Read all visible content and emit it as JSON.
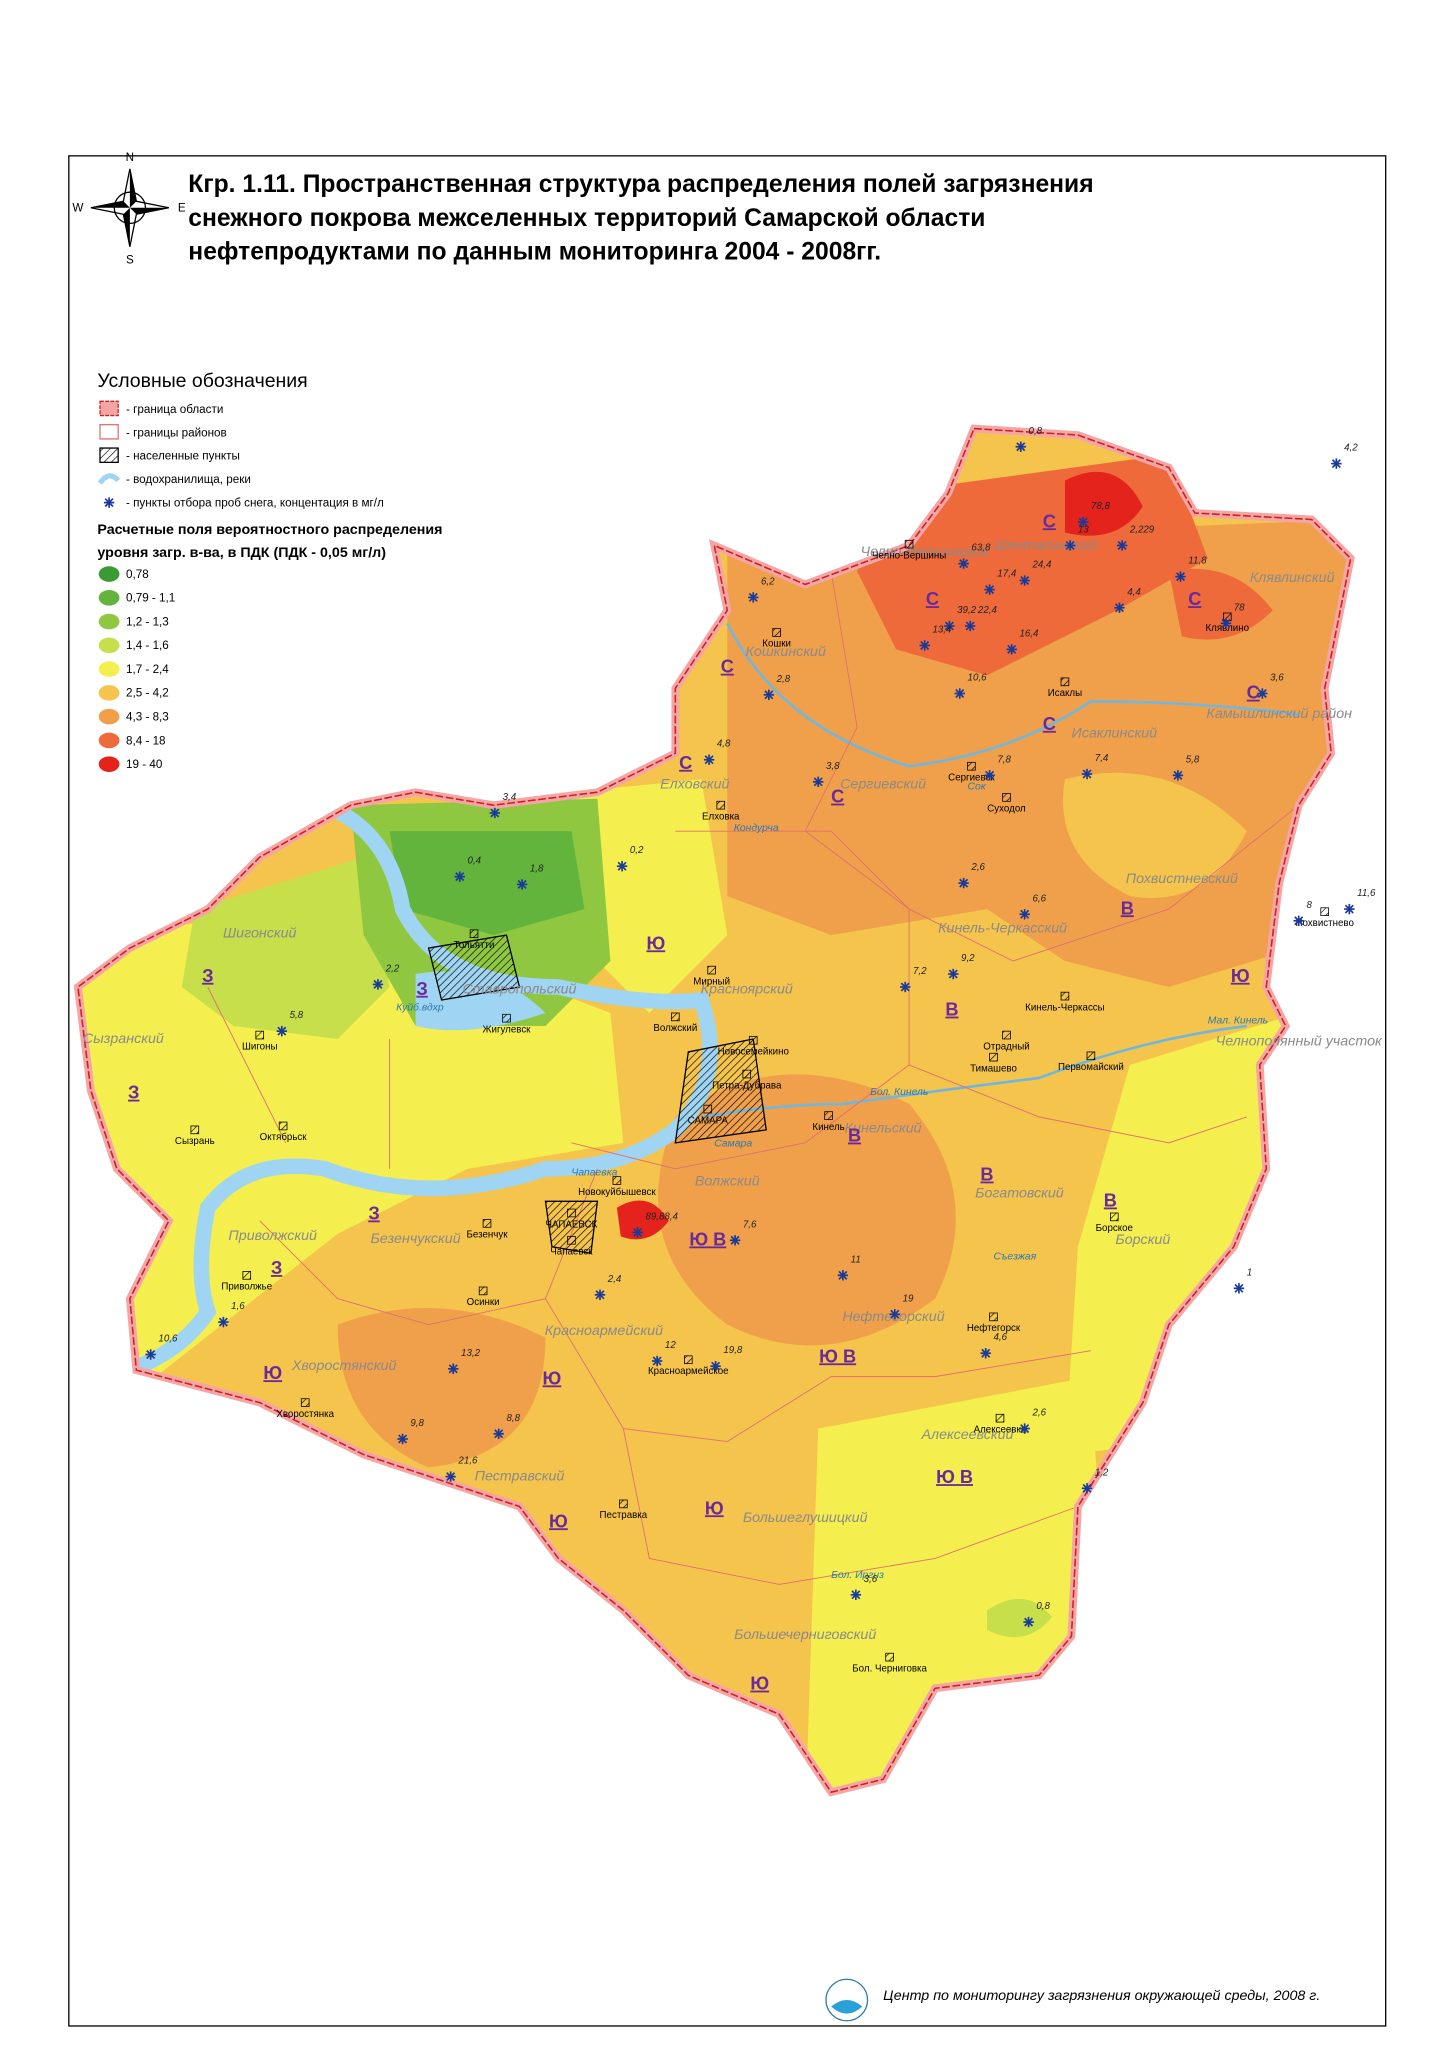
{
  "header": {
    "title_lines": [
      "Кгр. 1.11. Пространственная структура распределения  полей загрязнения",
      "снежного покрова межселенных территорий Самарской области",
      "нефтепродуктами по данным мониторинга 2004 - 2008гг."
    ],
    "compass": [
      "N",
      "S",
      "W",
      "E"
    ]
  },
  "legend": {
    "title": "Условные обозначения",
    "items": [
      "- граница области",
      "- границы районов",
      "- населенные пункты",
      "- водохранилища, реки",
      "- пункты отбора проб снега, концентация в мг/л"
    ],
    "fields_title_lines": [
      "Расчетные поля вероятностного распределения",
      "уровня загр. в-ва, в ПДК (ПДК - 0,05 мг/л)"
    ],
    "classes": [
      {
        "label": "0,78",
        "color": "#3b9a34"
      },
      {
        "label": "0,79 - 1,1",
        "color": "#62b43c"
      },
      {
        "label": "1,2 - 1,3",
        "color": "#8fc741"
      },
      {
        "label": "1,4 - 1,6",
        "color": "#c6df4b"
      },
      {
        "label": "1,7 - 2,4",
        "color": "#f4ef4e"
      },
      {
        "label": "2,5 - 4,2",
        "color": "#f5c44c"
      },
      {
        "label": "4,3 - 8,3",
        "color": "#f0a04a"
      },
      {
        "label": "8,4 - 18",
        "color": "#ee6a3a"
      },
      {
        "label": "19 - 40",
        "color": "#e5231d"
      }
    ]
  },
  "map": {
    "districts": [
      "Шенталинский",
      "Клявлинский",
      "Челно-Вершинский",
      "Кошкинский",
      "Камышлинский район",
      "Исаклинский",
      "Елховский",
      "Сергиевский",
      "Похвистневский",
      "Шигонский",
      "Кинель-Черкасский",
      "Красноярский",
      "Ставропольский",
      "Сызранский",
      "Челнополянный участок",
      "Кинельский",
      "Богатовский",
      "Волжский",
      "Безенчукский",
      "Приволжский",
      "Борский",
      "Нефтегорский",
      "Красноармейский",
      "Хворостянский",
      "Алексеевский",
      "Пестравский",
      "Большеглушицкий",
      "Большечерниговский"
    ],
    "zones": [
      "С",
      "С",
      "С",
      "С",
      "С",
      "С",
      "С",
      "С",
      "В",
      "В",
      "В",
      "В",
      "В",
      "Ю В",
      "Ю В",
      "Ю В",
      "Ю",
      "Ю",
      "Ю",
      "Ю",
      "Ю",
      "Ю",
      "Ю",
      "З",
      "З",
      "З",
      "З",
      "З"
    ],
    "settlements": [
      "Челно-Вершины",
      "Кошки",
      "Клявлино",
      "Исаклы",
      "Сергиевск",
      "Суходол",
      "Елховка",
      "Тольятти",
      "Жигулевск",
      "Мирный",
      "Волжский",
      "Новосемейкино",
      "Петра-Дубрава",
      "САМАРА",
      "Кинель",
      "Похвистнево",
      "Кинель-Черкассы",
      "Отрадный",
      "Тимашево",
      "Первомайский",
      "Шигоны",
      "Октябрьск",
      "Сызрань",
      "Новокуйбышевск",
      "Безенчук",
      "ЧАПАЕВСК",
      "Чапаевск",
      "Приволжье",
      "Осинки",
      "Нефтегорск",
      "Борское",
      "Красноармейское",
      "Хворостянка",
      "Алексеевка",
      "Пестравка",
      "Бол. Черниговка"
    ],
    "rivers": [
      "Сок",
      "Бол. Кинель",
      "Самара",
      "Мал. Кинель",
      "Съезжая",
      "Чапаевка",
      "Бол. Иргиз",
      "Кондурча",
      "Куйб.вдхр"
    ],
    "samples": [
      "78,8",
      "13",
      "2,229",
      "78",
      "63,8",
      "17,4",
      "39,2",
      "22,4",
      "24,4",
      "13,4",
      "10,6",
      "16,4",
      "4,4",
      "11,8",
      "6,2",
      "2,8",
      "3,6",
      "7,8",
      "4,8",
      "3,8",
      "6,6",
      "5,8",
      "7,4",
      "9,2",
      "7,2",
      "2,6",
      "0,4",
      "1,8",
      "0,2",
      "2,2",
      "5,8",
      "3,4",
      "89,88,4",
      "7,6",
      "11",
      "19",
      "12",
      "19,8",
      "21,6",
      "9,8",
      "8,8",
      "13,2",
      "10,6",
      "1,6",
      "2,4",
      "4,6",
      "2,6",
      "3,6",
      "0,8",
      "4,2",
      "11,6",
      "8",
      "1,2",
      "1",
      "0,8"
    ]
  },
  "footer": "Центр по мониторингу загрязнения окружающей среды, 2008 г."
}
